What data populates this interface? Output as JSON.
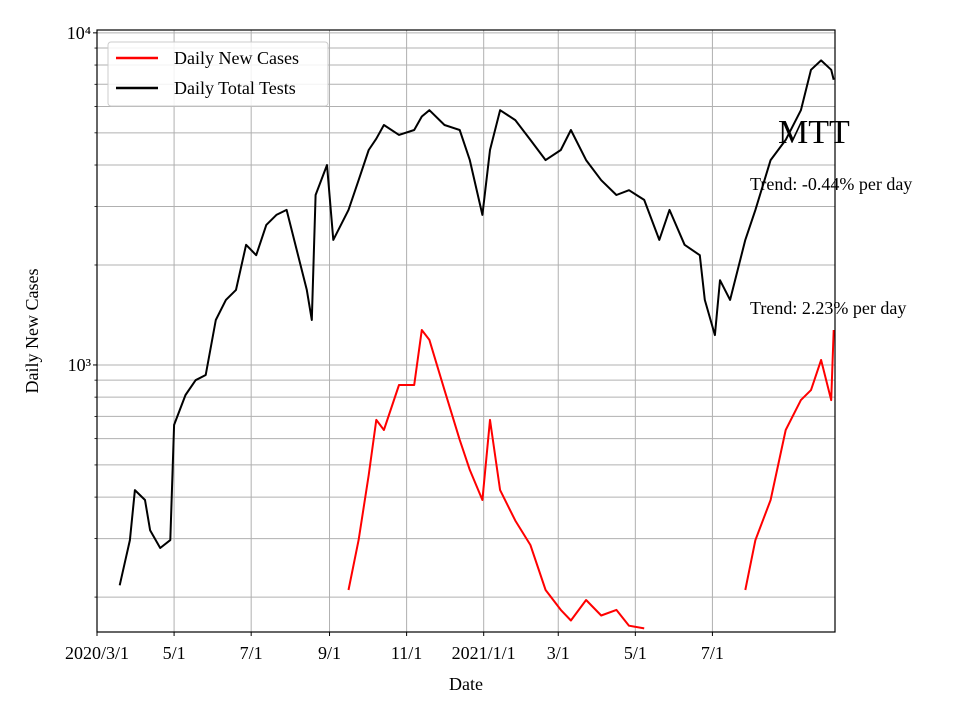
{
  "chart_data": {
    "type": "line",
    "ylabel": "Daily New Cases",
    "xlabel": "Date",
    "x": [
      "2020-03-19",
      "2020-03-27",
      "2020-03-31",
      "2020-04-08",
      "2020-04-12",
      "2020-04-20",
      "2020-04-28",
      "2020-05-01",
      "2020-05-10",
      "2020-05-18",
      "2020-05-26",
      "2020-06-03",
      "2020-06-11",
      "2020-06-19",
      "2020-06-27",
      "2020-07-05",
      "2020-07-13",
      "2020-07-21",
      "2020-07-29",
      "2020-08-06",
      "2020-08-14",
      "2020-08-18",
      "2020-08-21",
      "2020-08-30",
      "2020-09-04",
      "2020-09-16",
      "2020-09-24",
      "2020-10-02",
      "2020-10-08",
      "2020-10-14",
      "2020-10-26",
      "2020-11-07",
      "2020-11-13",
      "2020-11-19",
      "2020-12-01",
      "2020-12-13",
      "2020-12-21",
      "2020-12-31",
      "2021-01-06",
      "2021-01-14",
      "2021-01-26",
      "2021-02-07",
      "2021-02-19",
      "2021-03-03",
      "2021-03-11",
      "2021-03-23",
      "2021-04-04",
      "2021-04-16",
      "2021-04-26",
      "2021-05-08",
      "2021-05-20",
      "2021-05-28",
      "2021-06-09",
      "2021-06-21",
      "2021-06-25",
      "2021-07-03",
      "2021-07-07",
      "2021-07-15",
      "2021-07-27",
      "2021-08-04",
      "2021-08-16",
      "2021-08-28",
      "2021-09-09",
      "2021-09-17",
      "2021-09-25",
      "2021-10-03",
      "2021-10-05"
    ],
    "series": [
      {
        "name": "Daily New Cases",
        "color": "#ff0000",
        "values": [
          null,
          null,
          null,
          null,
          null,
          null,
          null,
          null,
          null,
          null,
          null,
          null,
          null,
          null,
          null,
          null,
          null,
          null,
          null,
          null,
          null,
          null,
          null,
          null,
          null,
          210,
          297,
          466,
          683,
          637,
          870,
          870,
          1274,
          1190,
          840,
          595,
          483,
          392,
          683,
          420,
          340,
          287,
          210,
          183,
          170,
          196,
          176,
          183,
          164,
          161,
          null,
          null,
          null,
          null,
          null,
          null,
          null,
          null,
          210,
          297,
          392,
          637,
          784,
          840,
          1035,
          784,
          1274
        ]
      },
      {
        "name": "Daily Total Tests",
        "color": "#000000",
        "values": [
          217,
          297,
          420,
          392,
          318,
          281,
          297,
          660,
          812,
          900,
          933,
          1366,
          1570,
          1683,
          2300,
          2140,
          2640,
          2830,
          2930,
          2220,
          1683,
          1366,
          3250,
          4000,
          2380,
          2930,
          3600,
          4440,
          4800,
          5280,
          4930,
          5100,
          5600,
          5850,
          5280,
          5100,
          4140,
          2830,
          4440,
          5850,
          5460,
          4760,
          4140,
          4440,
          5100,
          4140,
          3600,
          3250,
          3360,
          3140,
          2380,
          2930,
          2300,
          2140,
          1570,
          1230,
          1800,
          1570,
          2380,
          2930,
          4140,
          4760,
          5850,
          7740,
          8260,
          7740,
          7220
        ]
      }
    ],
    "xlim": [
      "2020-03-01",
      "2021-10-06"
    ],
    "xticks": [
      {
        "value": "2020-03-01",
        "label": "2020/3/1"
      },
      {
        "value": "2020-05-01",
        "label": "5/1"
      },
      {
        "value": "2020-07-01",
        "label": "7/1"
      },
      {
        "value": "2020-09-01",
        "label": "9/1"
      },
      {
        "value": "2020-11-01",
        "label": "11/1"
      },
      {
        "value": "2021-01-01",
        "label": "2021/1/1"
      },
      {
        "value": "2021-03-01",
        "label": "3/1"
      },
      {
        "value": "2021-05-01",
        "label": "5/1"
      },
      {
        "value": "2021-07-01",
        "label": "7/1"
      }
    ],
    "ylim": [
      157,
      10200
    ],
    "log_y": true,
    "yticks": [
      {
        "value": 1000,
        "label": "10³"
      },
      {
        "value": 10000,
        "label": "10⁴"
      }
    ],
    "yminorticks": [
      200,
      300,
      400,
      500,
      600,
      700,
      800,
      900,
      2000,
      3000,
      4000,
      5000,
      6000,
      7000,
      8000,
      9000
    ],
    "grid": true,
    "legend": "upper left",
    "annotations": [
      "MTT",
      "Trend: -0.44% per day",
      "Trend: 2.23% per day"
    ]
  }
}
